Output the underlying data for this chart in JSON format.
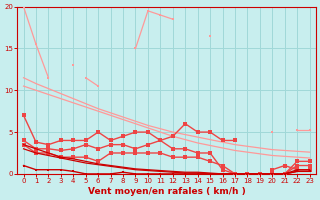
{
  "x": [
    0,
    1,
    2,
    3,
    4,
    5,
    6,
    7,
    8,
    9,
    10,
    11,
    12,
    13,
    14,
    15,
    16,
    17,
    18,
    19,
    20,
    21,
    22,
    23
  ],
  "line_pink_top": [
    20,
    15.5,
    null,
    null,
    13,
    null,
    5,
    null,
    null,
    15,
    19.5,
    19,
    18.5,
    null,
    null,
    16.5,
    null,
    null,
    null,
    null,
    5,
    null,
    5.2,
    5.2
  ],
  "line_pink_mid1": [
    null,
    15.5,
    11.5,
    null,
    null,
    11.5,
    10.5,
    null,
    null,
    null,
    null,
    null,
    null,
    null,
    null,
    null,
    null,
    null,
    null,
    null,
    null,
    null,
    null,
    null
  ],
  "line_diag1": [
    11.5,
    10.8,
    10.2,
    9.6,
    9.0,
    8.4,
    7.8,
    7.3,
    6.8,
    6.3,
    5.8,
    5.4,
    5.0,
    4.7,
    4.4,
    4.1,
    3.8,
    3.5,
    3.3,
    3.1,
    2.9,
    2.8,
    2.7,
    2.6
  ],
  "line_diag2": [
    10.5,
    10.0,
    9.5,
    9.0,
    8.5,
    8.0,
    7.5,
    7.0,
    6.5,
    6.0,
    5.5,
    5.0,
    4.5,
    4.1,
    3.7,
    3.4,
    3.1,
    2.8,
    2.6,
    2.4,
    2.2,
    2.1,
    2.0,
    1.9
  ],
  "line_med_noisy": [
    7.0,
    3.8,
    3.5,
    4.0,
    4.0,
    4.0,
    5.0,
    4.0,
    4.5,
    5.0,
    5.0,
    4.0,
    4.5,
    6.0,
    5.0,
    5.0,
    4.0,
    4.0,
    null,
    null,
    0.5,
    1.0,
    0.5,
    0.5
  ],
  "line_med_flat1": [
    4.0,
    3.0,
    3.0,
    2.8,
    3.0,
    3.5,
    3.0,
    3.5,
    3.5,
    3.0,
    3.5,
    4.0,
    3.0,
    3.0,
    2.5,
    2.5,
    0.5,
    0.0,
    0.0,
    0.0,
    0.0,
    0.0,
    1.5,
    1.5
  ],
  "line_med_flat2": [
    3.5,
    2.5,
    2.5,
    2.0,
    2.0,
    2.0,
    1.5,
    2.5,
    2.5,
    2.5,
    2.5,
    2.5,
    2.0,
    2.0,
    2.0,
    1.5,
    1.0,
    0.0,
    0.0,
    0.0,
    0.0,
    0.0,
    1.0,
    1.0
  ],
  "line_dark_diag1": [
    3.5,
    3.0,
    2.5,
    2.0,
    1.8,
    1.5,
    1.2,
    1.0,
    0.8,
    0.6,
    0.5,
    0.4,
    0.3,
    0.2,
    0.2,
    0.1,
    0.0,
    0.0,
    0.0,
    0.0,
    0.0,
    0.0,
    0.5,
    0.5
  ],
  "line_dark_diag2": [
    3.0,
    2.5,
    2.2,
    1.9,
    1.6,
    1.3,
    1.1,
    0.9,
    0.7,
    0.5,
    0.4,
    0.3,
    0.2,
    0.1,
    0.1,
    0.0,
    0.0,
    0.0,
    0.0,
    0.0,
    0.0,
    0.0,
    0.3,
    0.3
  ],
  "line_dark_bottom": [
    1.0,
    0.5,
    0.5,
    0.5,
    0.3,
    0.0,
    0.0,
    0.0,
    0.2,
    0.0,
    0.0,
    0.0,
    0.0,
    0.0,
    0.0,
    0.0,
    0.0,
    0.0,
    0.0,
    0.0,
    0.0,
    0.0,
    0.3,
    0.3
  ],
  "bg_color": "#c8eeee",
  "grid_color": "#a0d8d8",
  "color_light": "#ff9999",
  "color_medium": "#ee4444",
  "color_dark": "#cc0000",
  "xlabel": "Vent moyen/en rafales ( km/h )",
  "ylim": [
    0,
    20
  ],
  "xlim": [
    -0.5,
    23.5
  ]
}
